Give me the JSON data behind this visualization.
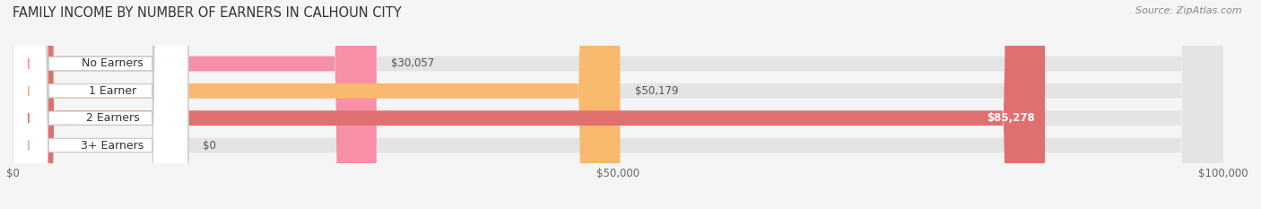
{
  "title": "FAMILY INCOME BY NUMBER OF EARNERS IN CALHOUN CITY",
  "source": "Source: ZipAtlas.com",
  "categories": [
    "No Earners",
    "1 Earner",
    "2 Earners",
    "3+ Earners"
  ],
  "values": [
    30057,
    50179,
    85278,
    0
  ],
  "bar_colors": [
    "#f78fa7",
    "#f9b96e",
    "#e07070",
    "#a8c4e0"
  ],
  "value_labels": [
    "$30,057",
    "$50,179",
    "$85,278",
    "$0"
  ],
  "xlim": [
    0,
    100000
  ],
  "xticks": [
    0,
    50000,
    100000
  ],
  "xticklabels": [
    "$0",
    "$50,000",
    "$100,000"
  ],
  "bar_height": 0.55,
  "background_color": "#f5f5f5",
  "bar_bg_color": "#e4e4e4",
  "title_fontsize": 10.5,
  "label_fontsize": 9,
  "value_fontsize": 8.5,
  "source_fontsize": 8
}
